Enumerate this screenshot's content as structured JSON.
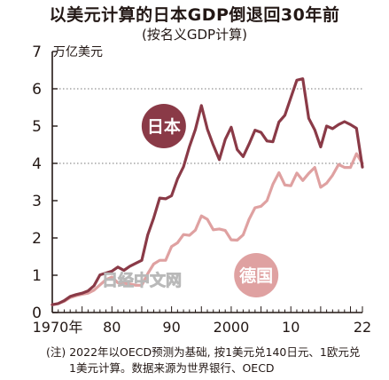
{
  "title": "以美元计算的日本GDP倒退回30年前",
  "subtitle": "(按名义GDP计算)",
  "y_unit": "万亿美元",
  "x_tick_labels": [
    "1970年",
    "80",
    "90",
    "2000",
    "10",
    "22"
  ],
  "y_tick_labels": [
    "0",
    "1",
    "2",
    "3",
    "4",
    "5",
    "6",
    "7"
  ],
  "series_labels": {
    "japan": "日本",
    "germany": "德国"
  },
  "watermark": "日经中文网",
  "note_line1": "(注) 2022年以OECD预测为基础, 按1美元兑140日元、1欧元兑",
  "note_line2": "1美元计算。数据来源为世界银行、OECD",
  "colors": {
    "japan": "#8a3a47",
    "germany": "#dfa1a1",
    "axis": "#231815",
    "grid": "#777777"
  },
  "chart_data": {
    "type": "line",
    "xlim": [
      1970,
      2022
    ],
    "ylim": [
      0,
      7
    ],
    "x_ticks": [
      1970,
      1980,
      1990,
      2000,
      2010,
      2022
    ],
    "y_ticks": [
      0,
      1,
      2,
      3,
      4,
      5,
      6,
      7
    ],
    "grid_y": [
      4,
      6
    ],
    "x": [
      1970,
      1971,
      1972,
      1973,
      1974,
      1975,
      1976,
      1977,
      1978,
      1979,
      1980,
      1981,
      1982,
      1983,
      1984,
      1985,
      1986,
      1987,
      1988,
      1989,
      1990,
      1991,
      1992,
      1993,
      1994,
      1995,
      1996,
      1997,
      1998,
      1999,
      2000,
      2001,
      2002,
      2003,
      2004,
      2005,
      2006,
      2007,
      2008,
      2009,
      2010,
      2011,
      2012,
      2013,
      2014,
      2015,
      2016,
      2017,
      2018,
      2019,
      2020,
      2021,
      2022
    ],
    "series": [
      {
        "name": "日本",
        "values": [
          0.21,
          0.24,
          0.32,
          0.43,
          0.48,
          0.52,
          0.58,
          0.72,
          1.01,
          1.06,
          1.11,
          1.22,
          1.13,
          1.24,
          1.32,
          1.4,
          2.08,
          2.53,
          3.07,
          3.05,
          3.13,
          3.58,
          3.91,
          4.45,
          4.91,
          5.55,
          4.92,
          4.49,
          4.1,
          4.64,
          4.97,
          4.37,
          4.18,
          4.52,
          4.89,
          4.83,
          4.6,
          4.58,
          5.11,
          5.29,
          5.76,
          6.23,
          6.27,
          5.21,
          4.9,
          4.44,
          5.0,
          4.93,
          5.04,
          5.12,
          5.04,
          4.94,
          3.9
        ]
      },
      {
        "name": "德国",
        "values": [
          0.21,
          0.24,
          0.3,
          0.4,
          0.45,
          0.49,
          0.52,
          0.6,
          0.74,
          0.88,
          0.95,
          0.8,
          0.78,
          0.77,
          0.73,
          0.73,
          1.04,
          1.3,
          1.4,
          1.4,
          1.77,
          1.87,
          2.09,
          2.07,
          2.21,
          2.59,
          2.5,
          2.22,
          2.24,
          2.2,
          1.95,
          1.94,
          2.08,
          2.5,
          2.81,
          2.85,
          3.0,
          3.44,
          3.75,
          3.42,
          3.4,
          3.74,
          3.54,
          3.73,
          3.89,
          3.36,
          3.47,
          3.68,
          3.97,
          3.89,
          3.89,
          4.26,
          4.0
        ]
      }
    ]
  }
}
